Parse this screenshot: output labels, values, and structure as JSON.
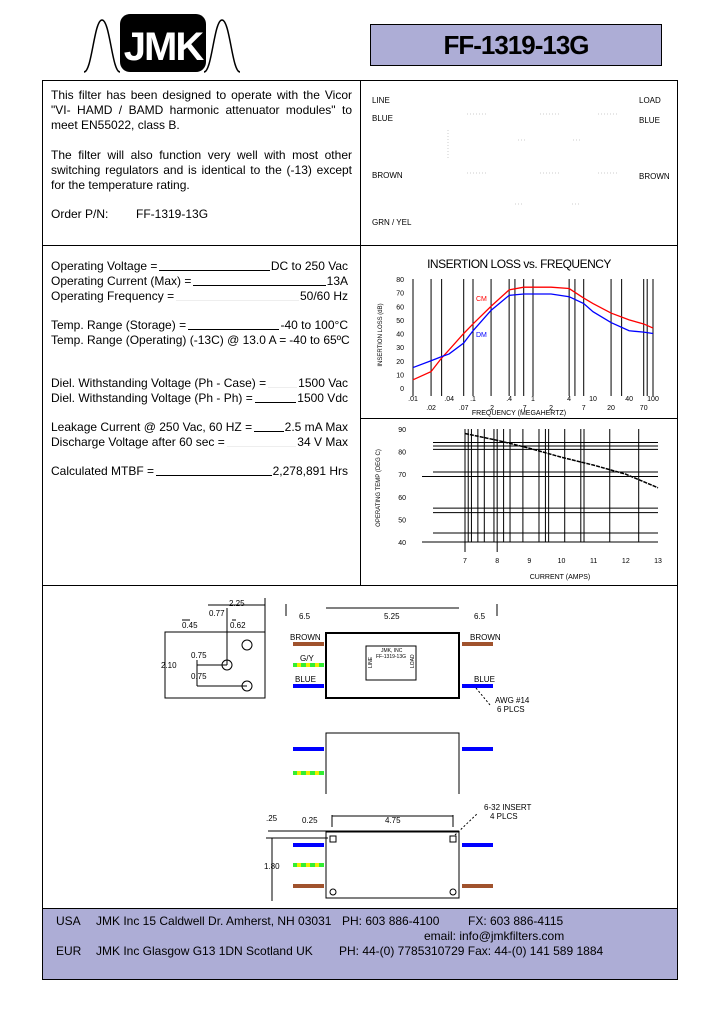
{
  "logo": {
    "text": "JMK"
  },
  "part_number": "FF-1319-13G",
  "colors": {
    "title_bg": "#adadd6",
    "cm_curve": "#ff0000",
    "dm_curve": "#0000ff",
    "brown_lead": "#a0522d",
    "blue_lead": "#0000ff",
    "gy_green": "#33ee33",
    "gy_yellow": "#eeee00"
  },
  "description": {
    "para1": "This filter has been designed to operate with the Vicor \"VI- HAMD / BAMD harmonic attenuator modules\" to meet EN55022, class B.",
    "para2": "The filter will also function very well with most other switching regulators and is identical to the (-13) except for the temperature rating.",
    "order_label": "Order P/N:",
    "order_value": "FF-1319-13G"
  },
  "schematic": {
    "line": "LINE",
    "load": "LOAD",
    "blue_left": "BLUE",
    "blue_right": "BLUE",
    "brown_left": "BROWN",
    "brown_right": "BROWN",
    "grn_yel": "GRN / YEL"
  },
  "specs": [
    {
      "label": "Operating Voltage =",
      "value": "DC to 250 Vac"
    },
    {
      "label": "Operating Current (Max) =",
      "value": "13A"
    },
    {
      "label": "Operating Frequency =",
      "value": "50/60 Hz"
    },
    {
      "label": "Temp. Range (Storage) =",
      "value": "-40 to 100°C"
    },
    {
      "label": "Temp. Range (Operating) (-13C) @ 13.0 A =",
      "value": "-40 to 65ºC"
    },
    {
      "label": "Diel. Withstanding Voltage (Ph - Case) =",
      "value": "1500 Vac"
    },
    {
      "label": "Diel. Withstanding Voltage (Ph - Ph) =",
      "value": "1500  Vdc"
    },
    {
      "label": "Leakage Current @ 250 Vac, 60 HZ =",
      "value": "2.5 mA Max"
    },
    {
      "label": "Discharge Voltage after 60 sec =",
      "value": "34 V Max"
    },
    {
      "label": "Calculated MTBF =",
      "value": "2,278,891 Hrs"
    }
  ],
  "chart_data": [
    {
      "type": "line",
      "title": "INSERTION LOSS vs. FREQUENCY",
      "xlabel": "FREQUENCY (MEGAHERTZ)",
      "ylabel": "INSERTION LOSS (dB)",
      "xscale": "log",
      "xlim": [
        0.01,
        100
      ],
      "ylim": [
        0,
        80
      ],
      "grid": "vertical",
      "x_ticks_row1": [
        ".01",
        ".04",
        ".1",
        ".4",
        "1",
        "4",
        "10",
        "40",
        "100"
      ],
      "x_ticks_row2": [
        ".02",
        ".07",
        ".2",
        ".7",
        "2",
        "7",
        "20",
        "70"
      ],
      "y_ticks": [
        "0",
        "10",
        "20",
        "30",
        "40",
        "50",
        "60",
        "70",
        "80"
      ],
      "x": [
        0.01,
        0.02,
        0.03,
        0.04,
        0.07,
        0.1,
        0.2,
        0.4,
        0.7,
        1,
        2,
        4,
        7,
        10,
        20,
        40,
        70,
        100
      ],
      "series": [
        {
          "name": "CM",
          "values": [
            6,
            12,
            22,
            28,
            40,
            47,
            60,
            72,
            74,
            74,
            74,
            73,
            66,
            62,
            55,
            50,
            47,
            44
          ]
        },
        {
          "name": "DM",
          "values": [
            15,
            20,
            23,
            25,
            33,
            42,
            57,
            68,
            69,
            69,
            69,
            67,
            62,
            56,
            48,
            42,
            41,
            40
          ]
        }
      ]
    },
    {
      "type": "line",
      "xlabel": "CURRENT (AMPS)",
      "ylabel": "OPERATING TEMP (DEG C)",
      "xlim": [
        7,
        13
      ],
      "ylim": [
        40,
        90
      ],
      "grid": "both",
      "x_ticks": [
        "7",
        "8",
        "9",
        "10",
        "11",
        "12",
        "13"
      ],
      "y_ticks": [
        "40",
        "50",
        "60",
        "70",
        "80",
        "90"
      ],
      "x": [
        7,
        8,
        9,
        10,
        11,
        12,
        13
      ],
      "series": [
        {
          "values": [
            88,
            85,
            81.5,
            77.5,
            74,
            70,
            64
          ]
        }
      ]
    }
  ],
  "drawing": {
    "dim_225": "2.25",
    "dim_077": "0.77",
    "dim_045": "0.45",
    "dim_062": "0.62",
    "dim_075a": "0.75",
    "dim_210": "2.10",
    "dim_075b": "0.75",
    "dim_65a": "6.5",
    "dim_525": "5.25",
    "dim_65b": "6.5",
    "brown_l": "BROWN",
    "brown_r": "BROWN",
    "gy": "G/Y",
    "blue_l": "BLUE",
    "blue_r": "BLUE",
    "awg": "AWG #14",
    "awg_plcs": "6 PLCS",
    "dim_025a": ".25",
    "dim_025b": "0.25",
    "dim_475": "4.75",
    "dim_180": "1.80",
    "insert": "6-32 INSERT",
    "insert_plcs": "4 PLCS",
    "label_line": "LINE",
    "label_load": "LOAD",
    "label_jmk": "JMK, INC",
    "label_pn": "FF-1319-13G"
  },
  "footer": {
    "usa_region": "USA",
    "usa_addr": "JMK Inc  15 Caldwell Dr.   Amherst, NH 03031",
    "usa_ph": "PH: 603 886-4100",
    "usa_fx": "FX: 603 886-4115",
    "email": "email: info@jmkfilters.com",
    "eur_region": "EUR",
    "eur_addr": "JMK Inc  Glasgow  G13 1DN  Scotland UK",
    "eur_ph": "PH: 44-(0) 7785310729  Fax: 44-(0) 141 589 1884"
  }
}
